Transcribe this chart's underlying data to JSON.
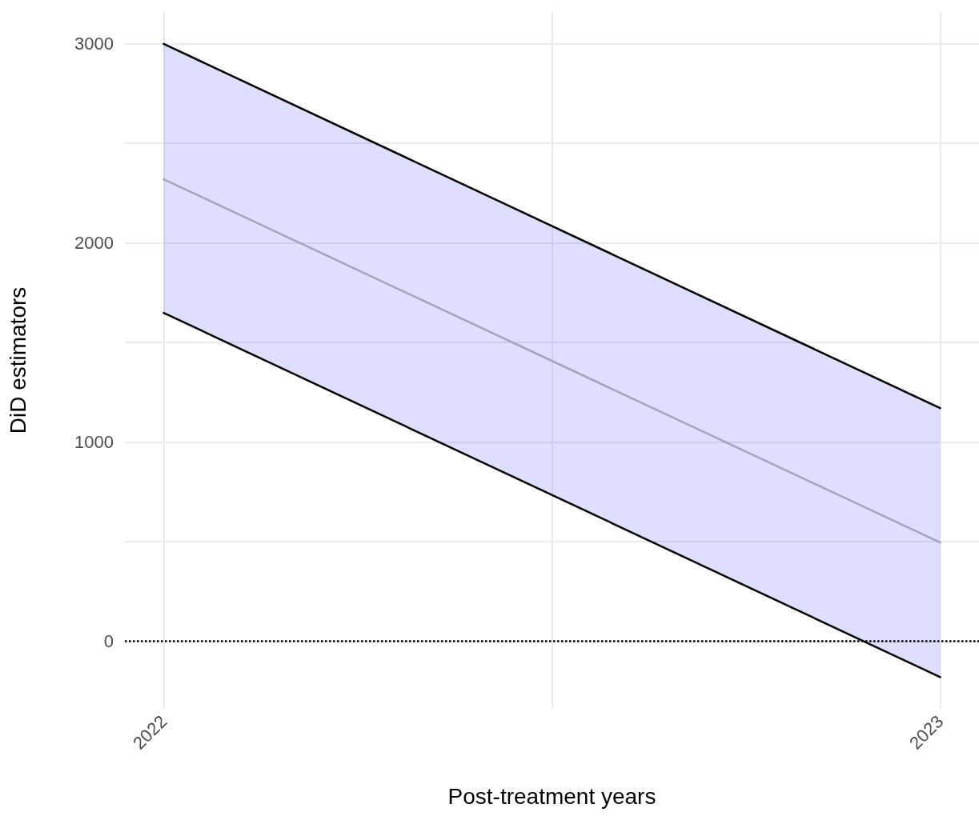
{
  "chart_data": {
    "type": "line",
    "xlabel": "Post-treatment years",
    "ylabel": "DiD estimators",
    "x": [
      2022,
      2023
    ],
    "series": [
      {
        "color": "#000000",
        "values": [
          3000,
          1170
        ]
      },
      {
        "color": "#000000",
        "values": [
          1649,
          -181
        ]
      },
      {
        "color": "#a3a3bf",
        "values": [
          2320,
          495
        ],
        "lower": [
          1649,
          -181
        ],
        "upper": [
          3000,
          1170
        ]
      }
    ],
    "xlim": [
      2021.95,
      2023.05
    ],
    "xticks": [
      2022,
      {
        "value": 2022.5,
        "label": null
      },
      2023
    ],
    "ylim": [
      -340,
      3160
    ],
    "yticks": [
      0,
      {
        "value": 500,
        "label": null
      },
      1000,
      {
        "value": 1500,
        "label": null
      },
      2000,
      {
        "value": 2500,
        "label": null
      },
      3000
    ],
    "ref_lines": [
      {
        "axis": "y",
        "value": 0,
        "color": "#000000",
        "line_style": "dotted"
      }
    ],
    "grid": true,
    "marker": "none",
    "line_style": "solid"
  }
}
